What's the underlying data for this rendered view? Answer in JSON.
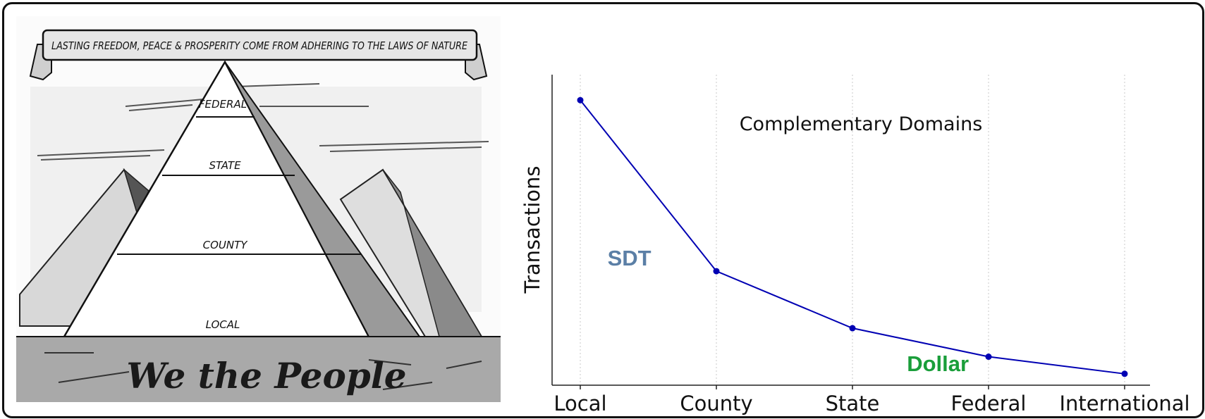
{
  "cartoon": {
    "banner": "LASTING FREEDOM, PEACE & PROSPERITY COME FROM ADHERING TO THE LAWS OF NATURE",
    "tiers": [
      "FEDERAL",
      "STATE",
      "COUNTY",
      "LOCAL"
    ],
    "base_text": "We the People"
  },
  "chart_data": {
    "type": "line",
    "title": "Complementary Domains",
    "xlabel": "",
    "ylabel": "Transactions",
    "categories": [
      "Local",
      "County",
      "State",
      "Federal",
      "International"
    ],
    "series": [
      {
        "values": [
          100,
          40,
          20,
          10,
          4
        ],
        "color": "#0000b3"
      }
    ],
    "ylim": [
      0,
      104
    ],
    "grid": "vertical-dotted",
    "annotations": [
      {
        "text": "SDT",
        "color": "#5b7fa6",
        "x": 0.2,
        "y": 42
      },
      {
        "text": "Dollar",
        "color": "#1a9e3a",
        "x": 2.4,
        "y": 5
      }
    ]
  }
}
